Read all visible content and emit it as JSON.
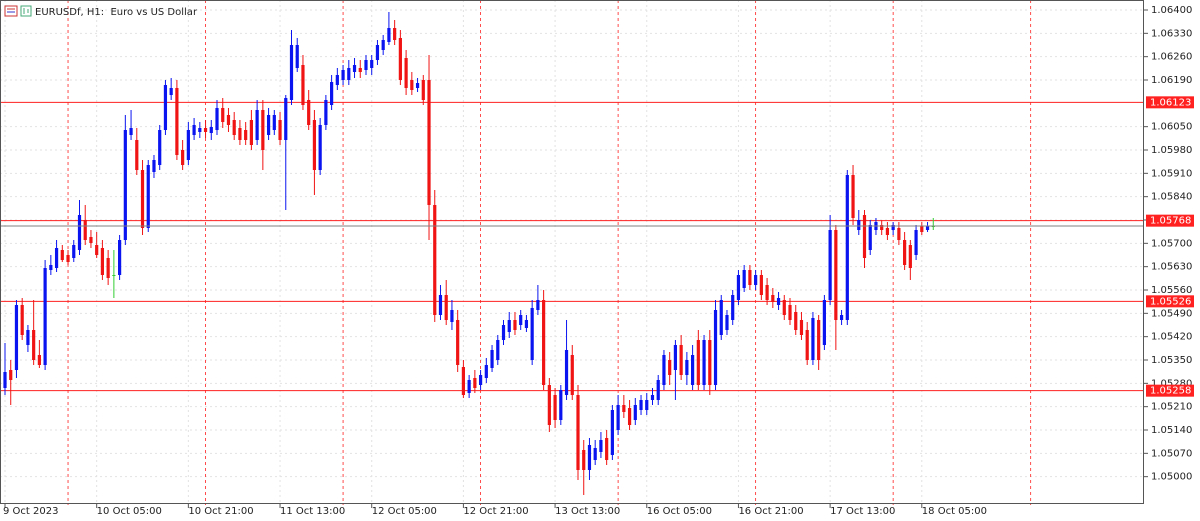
{
  "chart_data": {
    "type": "candlestick",
    "title": "EURUSDf, H1:  Euro vs US Dollar",
    "categories": [
      "9 Oct 2023",
      null,
      null,
      null,
      null,
      null,
      null,
      null,
      null,
      null,
      null,
      null,
      null,
      null,
      null,
      null,
      "10 Oct 05:00",
      null,
      null,
      null,
      null,
      null,
      null,
      null,
      null,
      null,
      null,
      null,
      null,
      null,
      null,
      null,
      "10 Oct 21:00",
      null,
      null,
      null,
      null,
      null,
      null,
      null,
      null,
      null,
      null,
      null,
      null,
      null,
      null,
      null,
      "11 Oct 13:00",
      null,
      null,
      null,
      null,
      null,
      null,
      null,
      null,
      null,
      null,
      null,
      null,
      null,
      null,
      null,
      "12 Oct 05:00",
      null,
      null,
      null,
      null,
      null,
      null,
      null,
      null,
      null,
      null,
      null,
      null,
      null,
      null,
      null,
      "12 Oct 21:00",
      null,
      null,
      null,
      null,
      null,
      null,
      null,
      null,
      null,
      null,
      null,
      null,
      null,
      null,
      null,
      "13 Oct 13:00",
      null,
      null,
      null,
      null,
      null,
      null,
      null,
      null,
      null,
      null,
      null,
      null,
      null,
      null,
      null,
      "16 Oct 05:00",
      null,
      null,
      null,
      null,
      null,
      null,
      null,
      null,
      null,
      null,
      null,
      null,
      null,
      null,
      null,
      "16 Oct 21:00",
      null,
      null,
      null,
      null,
      null,
      null,
      null,
      null,
      null,
      null,
      null,
      null,
      null,
      null,
      null,
      "17 Oct 13:00",
      null,
      null,
      null,
      null,
      null,
      null,
      null,
      null,
      null,
      null,
      null,
      null,
      null,
      null,
      null,
      "18 Oct 05:00",
      null,
      null
    ],
    "open": [
      1.05266,
      1.0532,
      1.0532,
      1.05515,
      1.05395,
      1.0544,
      1.05365,
      1.05335,
      1.0562,
      1.05626,
      1.0568,
      1.05665,
      1.05656,
      1.0568,
      1.0577,
      1.05719,
      1.05695,
      1.05686,
      1.05656,
      1.05605,
      1.05605,
      1.0571,
      1.06025,
      1.0601,
      1.0592,
      1.05746,
      1.05914,
      1.05935,
      1.0604,
      1.06145,
      1.06166,
      1.0598,
      1.0595,
      1.06025,
      1.06034,
      1.06046,
      1.06031,
      1.0604,
      1.06106,
      1.06085,
      1.0607,
      1.06046,
      1.0604,
      1.0607,
      1.0601,
      1.061,
      1.06025,
      1.0604,
      1.0607,
      1.0601,
      1.0613,
      1.06226,
      1.06235,
      1.0613,
      1.0607,
      1.0592,
      1.06055,
      1.06115,
      1.06175,
      1.0619,
      1.0619,
      1.06214,
      1.06226,
      1.0622,
      1.06226,
      1.0625,
      1.0628,
      1.06304,
      1.06346,
      1.06316,
      1.06256,
      1.0619,
      1.06166,
      1.0619,
      1.0619,
      1.05815,
      1.05485,
      1.05545,
      1.05464,
      1.0547,
      1.05329,
      1.05251,
      1.05296,
      1.05275,
      1.05296,
      1.05326,
      1.0535,
      1.0541,
      1.05434,
      1.0547,
      1.05455,
      1.05446,
      1.0535,
      1.055,
      1.0553,
      1.05275,
      1.05245,
      1.0517,
      1.05245,
      1.05365,
      1.05245,
      1.0508,
      1.0502,
      1.0505,
      1.05074,
      1.05116,
      1.05065,
      1.0514,
      1.05215,
      1.05206,
      1.0517,
      1.052,
      1.052,
      1.0523,
      1.0523,
      1.05275,
      1.0535,
      1.0532,
      1.05395,
      1.05305,
      1.05275,
      1.0541,
      1.05275,
      1.0541,
      1.05275,
      1.05425,
      1.0544,
      1.0547,
      1.0553,
      1.05566,
      1.0562,
      1.05575,
      1.05605,
      1.05575,
      1.05545,
      1.05515,
      1.0553,
      1.05515,
      1.05494,
      1.0547,
      1.0544,
      1.0535,
      1.0547,
      1.05395,
      1.0553,
      1.0574,
      1.0547,
      1.0547,
      1.05905,
      1.0574,
      1.05785,
      1.0568,
      1.0574,
      1.05755,
      1.05746,
      1.0574,
      1.05746,
      1.0571,
      1.05695,
      1.05665,
      1.05752,
      1.0574,
      1.05752
    ],
    "high": [
      1.05401,
      1.0535,
      1.0553,
      1.05536,
      1.05455,
      1.0553,
      1.0541,
      1.0565,
      1.05665,
      1.0571,
      1.05695,
      1.0568,
      1.0571,
      1.0583,
      1.05815,
      1.0574,
      1.05734,
      1.0571,
      1.0568,
      1.0568,
      1.05725,
      1.06085,
      1.061,
      1.06046,
      1.0595,
      1.0595,
      1.05965,
      1.06055,
      1.0619,
      1.06196,
      1.0619,
      1.0601,
      1.06064,
      1.06076,
      1.06064,
      1.0607,
      1.0607,
      1.0613,
      1.06136,
      1.06106,
      1.06094,
      1.0607,
      1.06064,
      1.061,
      1.0613,
      1.0613,
      1.06106,
      1.061,
      1.06094,
      1.06145,
      1.0634,
      1.06316,
      1.06265,
      1.0616,
      1.061,
      1.06076,
      1.06145,
      1.06205,
      1.06226,
      1.06235,
      1.0625,
      1.06256,
      1.0625,
      1.06265,
      1.06265,
      1.0631,
      1.06325,
      1.06394,
      1.0637,
      1.0634,
      1.0628,
      1.06214,
      1.06196,
      1.06205,
      1.06265,
      1.0586,
      1.05575,
      1.0559,
      1.0553,
      1.055,
      1.0535,
      1.05305,
      1.0532,
      1.0532,
      1.05356,
      1.05395,
      1.05425,
      1.0547,
      1.05494,
      1.05494,
      1.055,
      1.05485,
      1.0553,
      1.05575,
      1.0556,
      1.05296,
      1.05266,
      1.05275,
      1.0547,
      1.05395,
      1.05275,
      1.0511,
      1.05116,
      1.0511,
      1.05134,
      1.0514,
      1.05215,
      1.05245,
      1.05245,
      1.0523,
      1.05236,
      1.05245,
      1.05251,
      1.05266,
      1.05305,
      1.0538,
      1.05374,
      1.0541,
      1.05425,
      1.05374,
      1.05395,
      1.0544,
      1.05425,
      1.0544,
      1.0553,
      1.05545,
      1.055,
      1.0556,
      1.0562,
      1.05635,
      1.05635,
      1.0562,
      1.0562,
      1.05596,
      1.05566,
      1.05554,
      1.05545,
      1.05536,
      1.05515,
      1.05494,
      1.05464,
      1.05494,
      1.05485,
      1.05545,
      1.05785,
      1.05755,
      1.055,
      1.0592,
      1.05935,
      1.058,
      1.058,
      1.0577,
      1.05776,
      1.0577,
      1.05764,
      1.05764,
      1.05764,
      1.05734,
      1.0571,
      1.05755,
      1.05764,
      1.05764,
      1.05776
    ],
    "low": [
      1.05245,
      1.05215,
      1.05296,
      1.0541,
      1.05374,
      1.05335,
      1.05326,
      1.0532,
      1.05605,
      1.05614,
      1.05644,
      1.05635,
      1.05644,
      1.05665,
      1.05695,
      1.05686,
      1.05656,
      1.0559,
      1.05575,
      1.05536,
      1.0559,
      1.05695,
      1.0601,
      1.05905,
      1.05725,
      1.05734,
      1.05896,
      1.0592,
      1.06025,
      1.0613,
      1.0595,
      1.0592,
      1.05935,
      1.0601,
      1.06016,
      1.06016,
      1.0601,
      1.06025,
      1.06046,
      1.06034,
      1.0601,
      1.05995,
      1.05995,
      1.0598,
      1.05995,
      1.0592,
      1.0601,
      1.06025,
      1.05995,
      1.058,
      1.06115,
      1.06214,
      1.061,
      1.0604,
      1.05845,
      1.05905,
      1.0604,
      1.061,
      1.0616,
      1.06175,
      1.06175,
      1.06196,
      1.06196,
      1.06205,
      1.06205,
      1.06235,
      1.06265,
      1.06295,
      1.06295,
      1.06175,
      1.06145,
      1.06145,
      1.06154,
      1.06115,
      1.0571,
      1.05464,
      1.0547,
      1.05455,
      1.0544,
      1.05314,
      1.05236,
      1.05236,
      1.05251,
      1.0526,
      1.05281,
      1.05314,
      1.05335,
      1.05395,
      1.05416,
      1.05425,
      1.0544,
      1.05434,
      1.05335,
      1.05485,
      1.0526,
      1.05134,
      1.05146,
      1.05155,
      1.0523,
      1.0523,
      1.0499,
      1.04945,
      1.0499,
      1.05035,
      1.05056,
      1.05035,
      1.0505,
      1.05125,
      1.05176,
      1.0514,
      1.05155,
      1.05185,
      1.05185,
      1.05215,
      1.05215,
      1.0526,
      1.05275,
      1.0523,
      1.0529,
      1.05275,
      1.0526,
      1.0526,
      1.0526,
      1.05245,
      1.0526,
      1.0541,
      1.05425,
      1.05455,
      1.05515,
      1.05554,
      1.0556,
      1.0556,
      1.0553,
      1.05515,
      1.05506,
      1.055,
      1.0547,
      1.05455,
      1.05425,
      1.0541,
      1.05335,
      1.05335,
      1.0532,
      1.0538,
      1.05515,
      1.0538,
      1.05455,
      1.05455,
      1.05755,
      1.05725,
      1.05626,
      1.05665,
      1.05725,
      1.05725,
      1.0571,
      1.05725,
      1.05695,
      1.0562,
      1.0559,
      1.0565,
      1.05725,
      1.05734,
      1.0574
    ],
    "close": [
      1.05314,
      1.0529,
      1.05515,
      1.05425,
      1.0544,
      1.0535,
      1.05335,
      1.05626,
      1.05635,
      1.05686,
      1.0565,
      1.05644,
      1.05695,
      1.05785,
      1.0571,
      1.05701,
      1.05665,
      1.05605,
      1.05596,
      1.05605,
      1.0571,
      1.0604,
      1.06046,
      1.0592,
      1.05746,
      1.05935,
      1.0595,
      1.0604,
      1.06175,
      1.06166,
      1.05965,
      1.05935,
      1.0604,
      1.06055,
      1.06046,
      1.06034,
      1.06049,
      1.06106,
      1.06064,
      1.06055,
      1.06025,
      1.0601,
      1.0601,
      1.05995,
      1.061,
      1.0598,
      1.06085,
      1.06085,
      1.0601,
      1.06136,
      1.06295,
      1.06295,
      1.06115,
      1.06055,
      1.0592,
      1.06055,
      1.0613,
      1.06184,
      1.06205,
      1.0622,
      1.06226,
      1.06235,
      1.06214,
      1.0625,
      1.0625,
      1.06295,
      1.0631,
      1.06346,
      1.0631,
      1.0619,
      1.06166,
      1.0616,
      1.06181,
      1.0613,
      1.05815,
      1.05485,
      1.05545,
      1.0547,
      1.055,
      1.05335,
      1.05245,
      1.0529,
      1.05266,
      1.05305,
      1.05335,
      1.0538,
      1.0541,
      1.05455,
      1.0547,
      1.0544,
      1.05485,
      1.0547,
      1.05506,
      1.0553,
      1.05275,
      1.05155,
      1.0517,
      1.0526,
      1.0538,
      1.05245,
      1.0502,
      1.0502,
      1.05095,
      1.05086,
      1.0511,
      1.0505,
      1.052,
      1.05215,
      1.05194,
      1.05155,
      1.05215,
      1.0523,
      1.0523,
      1.05245,
      1.0529,
      1.05365,
      1.05305,
      1.05395,
      1.05305,
      1.0535,
      1.05365,
      1.05275,
      1.0541,
      1.05275,
      1.055,
      1.0553,
      1.05485,
      1.05545,
      1.05605,
      1.0562,
      1.05575,
      1.05605,
      1.05545,
      1.0553,
      1.05524,
      1.05536,
      1.05485,
      1.0547,
      1.0544,
      1.05425,
      1.0535,
      1.05476,
      1.0535,
      1.0553,
      1.0574,
      1.0547,
      1.05485,
      1.05905,
      1.05776,
      1.0577,
      1.05656,
      1.05755,
      1.05764,
      1.0574,
      1.05725,
      1.05755,
      1.0571,
      1.05635,
      1.05626,
      1.0574,
      1.05734,
      1.05752,
      1.05752
    ],
    "up_color": "#0a14f0",
    "down_color": "#f01414",
    "doji_color": "#32cd32",
    "level_color": "#ff2020",
    "bid_color": "#808080",
    "ylim": [
      1.04915,
      1.0643
    ],
    "yticks": [
      {
        "value": 1.064,
        "label": "1.06400"
      },
      {
        "value": 1.0633,
        "label": "1.06330"
      },
      {
        "value": 1.0626,
        "label": "1.06260"
      },
      {
        "value": 1.0619,
        "label": "1.06190"
      },
      {
        "value": 1.0605,
        "label": "1.06050"
      },
      {
        "value": 1.0598,
        "label": "1.05980"
      },
      {
        "value": 1.0591,
        "label": "1.05910"
      },
      {
        "value": 1.0584,
        "label": "1.05840"
      },
      {
        "value": 1.0577,
        "label": "1.05770"
      },
      {
        "value": 1.057,
        "label": "1.05700"
      },
      {
        "value": 1.0563,
        "label": "1.05630"
      },
      {
        "value": 1.0556,
        "label": "1.05560"
      },
      {
        "value": 1.0549,
        "label": "1.05490"
      },
      {
        "value": 1.0542,
        "label": "1.05420"
      },
      {
        "value": 1.0535,
        "label": "1.05350"
      },
      {
        "value": 1.0528,
        "label": "1.05280"
      },
      {
        "value": 1.0521,
        "label": "1.05210"
      },
      {
        "value": 1.0514,
        "label": "1.05140"
      },
      {
        "value": 1.0507,
        "label": "1.05070"
      },
      {
        "value": 1.05,
        "label": "1.05000"
      }
    ],
    "levels": [
      1.06123,
      1.05768,
      1.05526,
      1.05258
    ],
    "grid": true
  }
}
